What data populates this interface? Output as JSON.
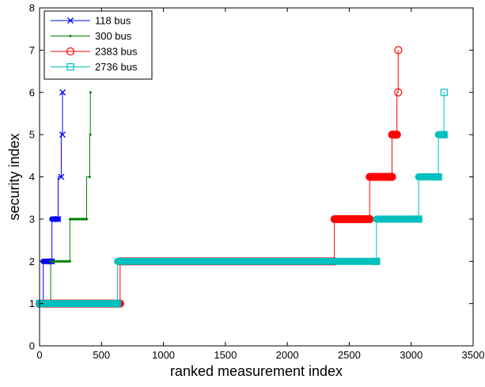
{
  "chart_data": {
    "type": "line",
    "xlabel": "ranked measurement index",
    "ylabel": "security index",
    "xlim": [
      0,
      3500
    ],
    "ylim": [
      0,
      8
    ],
    "xticks": [
      0,
      500,
      1000,
      1500,
      2000,
      2500,
      3000,
      3500
    ],
    "yticks": [
      0,
      1,
      2,
      3,
      4,
      5,
      6,
      7,
      8
    ],
    "grid": false,
    "legend_position": "top-left",
    "series": [
      {
        "name": "118 bus",
        "color": "#0000ff",
        "marker": "x",
        "steps": [
          {
            "x_start": 1,
            "x_end": 30,
            "y": 1
          },
          {
            "x_start": 30,
            "x_end": 100,
            "y": 2
          },
          {
            "x_start": 100,
            "x_end": 150,
            "y": 3
          },
          {
            "x_start": 150,
            "x_end": 175,
            "y": 4
          },
          {
            "x_start": 175,
            "x_end": 185,
            "y": 5
          },
          {
            "x_start": 185,
            "x_end": 186,
            "y": 6
          }
        ]
      },
      {
        "name": "300 bus",
        "color": "#008000",
        "marker": "dot",
        "steps": [
          {
            "x_start": 1,
            "x_end": 90,
            "y": 1
          },
          {
            "x_start": 90,
            "x_end": 245,
            "y": 2
          },
          {
            "x_start": 245,
            "x_end": 380,
            "y": 3
          },
          {
            "x_start": 380,
            "x_end": 405,
            "y": 4
          },
          {
            "x_start": 405,
            "x_end": 410,
            "y": 5
          },
          {
            "x_start": 410,
            "x_end": 411,
            "y": 6
          }
        ]
      },
      {
        "name": "2383 bus",
        "color": "#ff0000",
        "marker": "circle",
        "steps": [
          {
            "x_start": 1,
            "x_end": 650,
            "y": 1
          },
          {
            "x_start": 650,
            "x_end": 2380,
            "y": 2
          },
          {
            "x_start": 2380,
            "x_end": 2665,
            "y": 3
          },
          {
            "x_start": 2665,
            "x_end": 2845,
            "y": 4
          },
          {
            "x_start": 2845,
            "x_end": 2885,
            "y": 5
          },
          {
            "x_start": 2885,
            "x_end": 2895,
            "y": 6
          },
          {
            "x_start": 2895,
            "x_end": 2896,
            "y": 7
          }
        ]
      },
      {
        "name": "2736 bus",
        "color": "#00bfbf",
        "marker": "square",
        "steps": [
          {
            "x_start": 1,
            "x_end": 630,
            "y": 1
          },
          {
            "x_start": 630,
            "x_end": 2720,
            "y": 2
          },
          {
            "x_start": 2720,
            "x_end": 3060,
            "y": 3
          },
          {
            "x_start": 3060,
            "x_end": 3220,
            "y": 4
          },
          {
            "x_start": 3220,
            "x_end": 3265,
            "y": 5
          },
          {
            "x_start": 3265,
            "x_end": 3266,
            "y": 6
          }
        ]
      }
    ]
  }
}
